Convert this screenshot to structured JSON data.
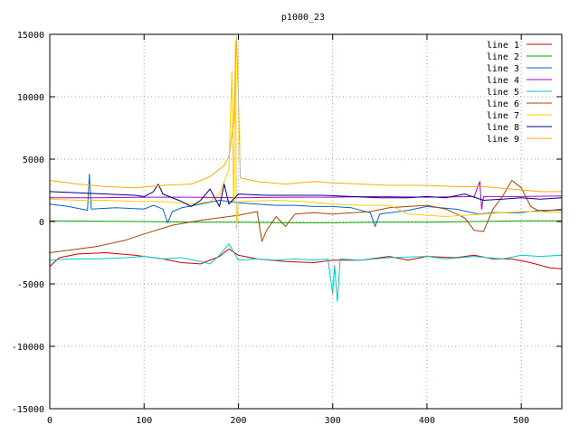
{
  "chart_data": {
    "type": "line",
    "title": "p1000_23",
    "xlabel": "",
    "ylabel": "",
    "xlim": [
      0,
      543
    ],
    "ylim": [
      -15000,
      15000
    ],
    "xticks": [
      0,
      100,
      200,
      300,
      400,
      500
    ],
    "yticks": [
      -15000,
      -10000,
      -5000,
      0,
      5000,
      10000,
      15000
    ],
    "grid": true,
    "legend_position": "top-right",
    "series": [
      {
        "name": "line 1",
        "color": "#cc0000",
        "points": [
          [
            0,
            -3600
          ],
          [
            10,
            -2900
          ],
          [
            30,
            -2600
          ],
          [
            60,
            -2500
          ],
          [
            90,
            -2700
          ],
          [
            120,
            -3000
          ],
          [
            140,
            -3300
          ],
          [
            160,
            -3400
          ],
          [
            180,
            -2800
          ],
          [
            190,
            -2200
          ],
          [
            200,
            -2700
          ],
          [
            220,
            -3000
          ],
          [
            250,
            -3200
          ],
          [
            280,
            -3300
          ],
          [
            300,
            -3100
          ],
          [
            330,
            -3100
          ],
          [
            360,
            -2800
          ],
          [
            380,
            -3100
          ],
          [
            400,
            -2800
          ],
          [
            430,
            -2900
          ],
          [
            450,
            -2700
          ],
          [
            470,
            -3000
          ],
          [
            490,
            -3000
          ],
          [
            510,
            -3300
          ],
          [
            530,
            -3700
          ],
          [
            543,
            -3800
          ]
        ]
      },
      {
        "name": "line 2",
        "color": "#00aa00",
        "points": [
          [
            0,
            50
          ],
          [
            60,
            20
          ],
          [
            100,
            0
          ],
          [
            150,
            -50
          ],
          [
            200,
            -50
          ],
          [
            250,
            -100
          ],
          [
            300,
            -100
          ],
          [
            350,
            -50
          ],
          [
            400,
            -50
          ],
          [
            450,
            0
          ],
          [
            500,
            50
          ],
          [
            543,
            50
          ]
        ]
      },
      {
        "name": "line 3",
        "color": "#0066cc",
        "points": [
          [
            0,
            1400
          ],
          [
            20,
            1200
          ],
          [
            40,
            900
          ],
          [
            42,
            3800
          ],
          [
            44,
            1000
          ],
          [
            70,
            1100
          ],
          [
            100,
            1000
          ],
          [
            110,
            1300
          ],
          [
            120,
            1000
          ],
          [
            125,
            -100
          ],
          [
            130,
            800
          ],
          [
            140,
            1100
          ],
          [
            160,
            1400
          ],
          [
            180,
            1700
          ],
          [
            200,
            1500
          ],
          [
            220,
            1400
          ],
          [
            240,
            1300
          ],
          [
            260,
            1300
          ],
          [
            280,
            1200
          ],
          [
            300,
            1200
          ],
          [
            320,
            1100
          ],
          [
            340,
            700
          ],
          [
            345,
            -400
          ],
          [
            350,
            600
          ],
          [
            370,
            800
          ],
          [
            380,
            900
          ],
          [
            400,
            1200
          ],
          [
            430,
            1000
          ],
          [
            455,
            600
          ],
          [
            470,
            700
          ],
          [
            500,
            700
          ],
          [
            520,
            900
          ],
          [
            543,
            900
          ]
        ]
      },
      {
        "name": "line 4",
        "color": "#aa00cc",
        "points": [
          [
            0,
            1900
          ],
          [
            50,
            1900
          ],
          [
            100,
            1950
          ],
          [
            150,
            1950
          ],
          [
            200,
            1900
          ],
          [
            250,
            1950
          ],
          [
            300,
            1950
          ],
          [
            350,
            2000
          ],
          [
            400,
            1950
          ],
          [
            450,
            2000
          ],
          [
            456,
            3200
          ],
          [
            458,
            1000
          ],
          [
            460,
            2000
          ],
          [
            500,
            2000
          ],
          [
            543,
            2050
          ]
        ]
      },
      {
        "name": "line 5",
        "color": "#00cccc",
        "points": [
          [
            0,
            -3100
          ],
          [
            20,
            -3000
          ],
          [
            50,
            -3000
          ],
          [
            80,
            -2900
          ],
          [
            100,
            -2800
          ],
          [
            120,
            -3000
          ],
          [
            140,
            -2900
          ],
          [
            160,
            -3200
          ],
          [
            170,
            -3400
          ],
          [
            180,
            -2700
          ],
          [
            190,
            -1800
          ],
          [
            200,
            -3100
          ],
          [
            220,
            -3000
          ],
          [
            240,
            -3100
          ],
          [
            260,
            -3000
          ],
          [
            280,
            -3100
          ],
          [
            295,
            -3000
          ],
          [
            300,
            -5800
          ],
          [
            302,
            -3500
          ],
          [
            305,
            -6400
          ],
          [
            308,
            -3000
          ],
          [
            330,
            -3100
          ],
          [
            360,
            -2900
          ],
          [
            400,
            -2800
          ],
          [
            420,
            -3000
          ],
          [
            450,
            -2800
          ],
          [
            480,
            -3000
          ],
          [
            500,
            -2700
          ],
          [
            520,
            -2800
          ],
          [
            543,
            -2700
          ]
        ]
      },
      {
        "name": "line 6",
        "color": "#aa4400",
        "points": [
          [
            0,
            -2500
          ],
          [
            20,
            -2300
          ],
          [
            50,
            -2000
          ],
          [
            80,
            -1500
          ],
          [
            100,
            -1000
          ],
          [
            130,
            -300
          ],
          [
            160,
            100
          ],
          [
            180,
            300
          ],
          [
            200,
            500
          ],
          [
            220,
            800
          ],
          [
            225,
            -1600
          ],
          [
            230,
            -700
          ],
          [
            240,
            400
          ],
          [
            250,
            -400
          ],
          [
            260,
            600
          ],
          [
            280,
            700
          ],
          [
            300,
            600
          ],
          [
            340,
            800
          ],
          [
            360,
            1100
          ],
          [
            380,
            1200
          ],
          [
            400,
            1300
          ],
          [
            420,
            1000
          ],
          [
            440,
            300
          ],
          [
            450,
            -700
          ],
          [
            460,
            -800
          ],
          [
            470,
            1000
          ],
          [
            480,
            2000
          ],
          [
            490,
            3300
          ],
          [
            500,
            2700
          ],
          [
            510,
            1200
          ],
          [
            520,
            800
          ],
          [
            543,
            1000
          ]
        ]
      },
      {
        "name": "line 7",
        "color": "#ffcc00",
        "points": [
          [
            0,
            1800
          ],
          [
            30,
            1700
          ],
          [
            60,
            1700
          ],
          [
            90,
            1600
          ],
          [
            120,
            1600
          ],
          [
            150,
            1400
          ],
          [
            170,
            1600
          ],
          [
            180,
            2200
          ],
          [
            190,
            4200
          ],
          [
            193,
            12000
          ],
          [
            195,
            1500
          ],
          [
            197,
            14500
          ],
          [
            198,
            -600
          ],
          [
            200,
            1600
          ],
          [
            240,
            1700
          ],
          [
            270,
            1600
          ],
          [
            300,
            1400
          ],
          [
            330,
            1300
          ],
          [
            360,
            1300
          ],
          [
            380,
            600
          ],
          [
            400,
            500
          ],
          [
            420,
            400
          ],
          [
            440,
            500
          ],
          [
            460,
            600
          ],
          [
            480,
            700
          ],
          [
            500,
            800
          ],
          [
            520,
            800
          ],
          [
            543,
            700
          ]
        ]
      },
      {
        "name": "line 8",
        "color": "#000080",
        "points": [
          [
            0,
            2400
          ],
          [
            30,
            2300
          ],
          [
            60,
            2200
          ],
          [
            90,
            2100
          ],
          [
            100,
            2000
          ],
          [
            110,
            2400
          ],
          [
            115,
            3000
          ],
          [
            120,
            2200
          ],
          [
            140,
            1600
          ],
          [
            150,
            1200
          ],
          [
            160,
            1700
          ],
          [
            170,
            2600
          ],
          [
            180,
            1200
          ],
          [
            185,
            3000
          ],
          [
            190,
            1400
          ],
          [
            200,
            2200
          ],
          [
            230,
            2100
          ],
          [
            260,
            2100
          ],
          [
            290,
            2100
          ],
          [
            320,
            2000
          ],
          [
            350,
            1900
          ],
          [
            380,
            1900
          ],
          [
            400,
            2000
          ],
          [
            420,
            1900
          ],
          [
            440,
            2200
          ],
          [
            460,
            1700
          ],
          [
            480,
            1800
          ],
          [
            500,
            1900
          ],
          [
            520,
            1800
          ],
          [
            543,
            1900
          ]
        ]
      },
      {
        "name": "line 9",
        "color": "#ffaa00",
        "points": [
          [
            0,
            3300
          ],
          [
            30,
            3000
          ],
          [
            60,
            2800
          ],
          [
            90,
            2700
          ],
          [
            120,
            2900
          ],
          [
            150,
            3000
          ],
          [
            170,
            3600
          ],
          [
            185,
            4500
          ],
          [
            190,
            5200
          ],
          [
            195,
            8000
          ],
          [
            198,
            14800
          ],
          [
            200,
            10000
          ],
          [
            202,
            3500
          ],
          [
            220,
            3200
          ],
          [
            250,
            3000
          ],
          [
            280,
            3200
          ],
          [
            300,
            3100
          ],
          [
            330,
            3000
          ],
          [
            360,
            2900
          ],
          [
            400,
            2900
          ],
          [
            430,
            2800
          ],
          [
            460,
            2800
          ],
          [
            490,
            2600
          ],
          [
            520,
            2400
          ],
          [
            543,
            2400
          ]
        ]
      }
    ]
  }
}
